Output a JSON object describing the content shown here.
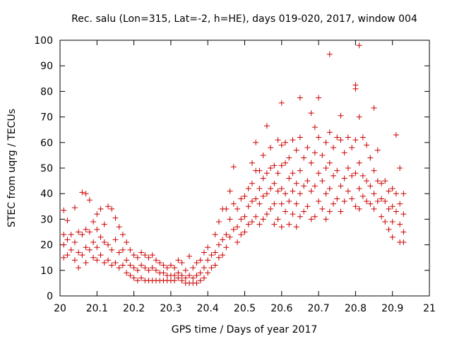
{
  "chart_data": {
    "type": "scatter",
    "title": "Rec. salu (Lon=315, Lat=-2, h=HE), days 019-020, 2017, window 004",
    "xlabel": "GPS time / Days of year 2017",
    "ylabel": "STEC from uqrg / TECUs",
    "xlim": [
      20,
      21
    ],
    "ylim": [
      0,
      100
    ],
    "x_ticks": [
      20,
      20.1,
      20.2,
      20.3,
      20.4,
      20.5,
      20.6,
      20.7,
      20.8,
      20.9,
      21
    ],
    "x_tick_labels": [
      "20",
      "20.1",
      "20.2",
      "20.3",
      "20.4",
      "20.5",
      "20.6",
      "20.7",
      "20.8",
      "20.9",
      "21"
    ],
    "y_ticks": [
      0,
      10,
      20,
      30,
      40,
      50,
      60,
      70,
      80,
      90,
      100
    ],
    "y_tick_labels": [
      "0",
      "10",
      "20",
      "30",
      "40",
      "50",
      "60",
      "70",
      "80",
      "90",
      "100"
    ],
    "grid": false,
    "marker": "+",
    "marker_color": "#cc0000",
    "points": [
      [
        20.01,
        33.5
      ],
      [
        20.01,
        24
      ],
      [
        20.01,
        20
      ],
      [
        20.01,
        15
      ],
      [
        20.02,
        29.5
      ],
      [
        20.02,
        22
      ],
      [
        20.02,
        16
      ],
      [
        20.03,
        24
      ],
      [
        20.03,
        18
      ],
      [
        20.04,
        34.5
      ],
      [
        20.04,
        21
      ],
      [
        20.04,
        14
      ],
      [
        20.05,
        25
      ],
      [
        20.05,
        17
      ],
      [
        20.05,
        11
      ],
      [
        20.06,
        40.5
      ],
      [
        20.06,
        24
      ],
      [
        20.06,
        16
      ],
      [
        20.07,
        40
      ],
      [
        20.07,
        26
      ],
      [
        20.07,
        19
      ],
      [
        20.07,
        13
      ],
      [
        20.08,
        37.5
      ],
      [
        20.08,
        25
      ],
      [
        20.08,
        18
      ],
      [
        20.09,
        29
      ],
      [
        20.09,
        21
      ],
      [
        20.09,
        15
      ],
      [
        20.1,
        32
      ],
      [
        20.1,
        26
      ],
      [
        20.1,
        19
      ],
      [
        20.1,
        14
      ],
      [
        20.11,
        34
      ],
      [
        20.11,
        23
      ],
      [
        20.11,
        16
      ],
      [
        20.12,
        28
      ],
      [
        20.12,
        21
      ],
      [
        20.12,
        13
      ],
      [
        20.13,
        35
      ],
      [
        20.13,
        20
      ],
      [
        20.13,
        14
      ],
      [
        20.14,
        34
      ],
      [
        20.14,
        18
      ],
      [
        20.14,
        12
      ],
      [
        20.15,
        30.5
      ],
      [
        20.15,
        22
      ],
      [
        20.15,
        13
      ],
      [
        20.16,
        27
      ],
      [
        20.16,
        17
      ],
      [
        20.16,
        11
      ],
      [
        20.17,
        24
      ],
      [
        20.17,
        18
      ],
      [
        20.17,
        12
      ],
      [
        20.18,
        21
      ],
      [
        20.18,
        14
      ],
      [
        20.18,
        9
      ],
      [
        20.19,
        18
      ],
      [
        20.19,
        12
      ],
      [
        20.19,
        8
      ],
      [
        20.2,
        16
      ],
      [
        20.2,
        11
      ],
      [
        20.2,
        7
      ],
      [
        20.21,
        15
      ],
      [
        20.21,
        10
      ],
      [
        20.21,
        6
      ],
      [
        20.22,
        17
      ],
      [
        20.22,
        12
      ],
      [
        20.22,
        7
      ],
      [
        20.23,
        16
      ],
      [
        20.23,
        11
      ],
      [
        20.23,
        6
      ],
      [
        20.24,
        15
      ],
      [
        20.24,
        10
      ],
      [
        20.24,
        6
      ],
      [
        20.25,
        16
      ],
      [
        20.25,
        11
      ],
      [
        20.25,
        6
      ],
      [
        20.26,
        14
      ],
      [
        20.26,
        10
      ],
      [
        20.26,
        6
      ],
      [
        20.27,
        13
      ],
      [
        20.27,
        9
      ],
      [
        20.27,
        6
      ],
      [
        20.28,
        12
      ],
      [
        20.28,
        9
      ],
      [
        20.28,
        6
      ],
      [
        20.29,
        11
      ],
      [
        20.29,
        8
      ],
      [
        20.29,
        6
      ],
      [
        20.3,
        12
      ],
      [
        20.3,
        8
      ],
      [
        20.3,
        6
      ],
      [
        20.31,
        11
      ],
      [
        20.31,
        8
      ],
      [
        20.31,
        6
      ],
      [
        20.32,
        14
      ],
      [
        20.32,
        9
      ],
      [
        20.32,
        7
      ],
      [
        20.33,
        13
      ],
      [
        20.33,
        8
      ],
      [
        20.33,
        6
      ],
      [
        20.34,
        10
      ],
      [
        20.34,
        7
      ],
      [
        20.34,
        5
      ],
      [
        20.35,
        15.5
      ],
      [
        20.35,
        8
      ],
      [
        20.35,
        5
      ],
      [
        20.36,
        11
      ],
      [
        20.36,
        7
      ],
      [
        20.36,
        5
      ],
      [
        20.37,
        13
      ],
      [
        20.37,
        8
      ],
      [
        20.37,
        5
      ],
      [
        20.38,
        14
      ],
      [
        20.38,
        9
      ],
      [
        20.38,
        6
      ],
      [
        20.39,
        17
      ],
      [
        20.39,
        11
      ],
      [
        20.39,
        7
      ],
      [
        20.4,
        19
      ],
      [
        20.4,
        14
      ],
      [
        20.4,
        9
      ],
      [
        20.41,
        16
      ],
      [
        20.41,
        11
      ],
      [
        20.42,
        24
      ],
      [
        20.42,
        17
      ],
      [
        20.42,
        12
      ],
      [
        20.43,
        29
      ],
      [
        20.43,
        20
      ],
      [
        20.43,
        15
      ],
      [
        20.44,
        34
      ],
      [
        20.44,
        22
      ],
      [
        20.44,
        16
      ],
      [
        20.45,
        34
      ],
      [
        20.45,
        24
      ],
      [
        20.45,
        19
      ],
      [
        20.46,
        41
      ],
      [
        20.46,
        30
      ],
      [
        20.46,
        23
      ],
      [
        20.47,
        50.5
      ],
      [
        20.47,
        36
      ],
      [
        20.47,
        26
      ],
      [
        20.48,
        34
      ],
      [
        20.48,
        27
      ],
      [
        20.48,
        21
      ],
      [
        20.49,
        38
      ],
      [
        20.49,
        30
      ],
      [
        20.49,
        24
      ],
      [
        20.5,
        39
      ],
      [
        20.5,
        31
      ],
      [
        20.5,
        25
      ],
      [
        20.51,
        42
      ],
      [
        20.51,
        35
      ],
      [
        20.51,
        28
      ],
      [
        20.52,
        52
      ],
      [
        20.52,
        44
      ],
      [
        20.52,
        37
      ],
      [
        20.52,
        29
      ],
      [
        20.53,
        60
      ],
      [
        20.53,
        49
      ],
      [
        20.53,
        38
      ],
      [
        20.53,
        31
      ],
      [
        20.54,
        49
      ],
      [
        20.54,
        42
      ],
      [
        20.54,
        36
      ],
      [
        20.54,
        28
      ],
      [
        20.55,
        55
      ],
      [
        20.55,
        46
      ],
      [
        20.55,
        39
      ],
      [
        20.55,
        30
      ],
      [
        20.56,
        66.5
      ],
      [
        20.56,
        48
      ],
      [
        20.56,
        40
      ],
      [
        20.56,
        32
      ],
      [
        20.57,
        58
      ],
      [
        20.57,
        50
      ],
      [
        20.57,
        42
      ],
      [
        20.57,
        34
      ],
      [
        20.58,
        51
      ],
      [
        20.58,
        44
      ],
      [
        20.58,
        36
      ],
      [
        20.58,
        28
      ],
      [
        20.59,
        61
      ],
      [
        20.59,
        48
      ],
      [
        20.59,
        41
      ],
      [
        20.59,
        30
      ],
      [
        20.6,
        75.5
      ],
      [
        20.6,
        59
      ],
      [
        20.6,
        51
      ],
      [
        20.6,
        42
      ],
      [
        20.6,
        36
      ],
      [
        20.6,
        27
      ],
      [
        20.61,
        60
      ],
      [
        20.61,
        52
      ],
      [
        20.61,
        40
      ],
      [
        20.61,
        33
      ],
      [
        20.62,
        54
      ],
      [
        20.62,
        46
      ],
      [
        20.62,
        37
      ],
      [
        20.62,
        28
      ],
      [
        20.63,
        61
      ],
      [
        20.63,
        48
      ],
      [
        20.63,
        41
      ],
      [
        20.63,
        32
      ],
      [
        20.64,
        57
      ],
      [
        20.64,
        44
      ],
      [
        20.64,
        36
      ],
      [
        20.64,
        27
      ],
      [
        20.65,
        77.5
      ],
      [
        20.65,
        62
      ],
      [
        20.65,
        49
      ],
      [
        20.65,
        40
      ],
      [
        20.65,
        31
      ],
      [
        20.66,
        54
      ],
      [
        20.66,
        43
      ],
      [
        20.66,
        33
      ],
      [
        20.67,
        58
      ],
      [
        20.67,
        45
      ],
      [
        20.67,
        35
      ],
      [
        20.68,
        71.5
      ],
      [
        20.68,
        52
      ],
      [
        20.68,
        41
      ],
      [
        20.68,
        30
      ],
      [
        20.69,
        66
      ],
      [
        20.69,
        56
      ],
      [
        20.69,
        43
      ],
      [
        20.69,
        31
      ],
      [
        20.7,
        77.5
      ],
      [
        20.7,
        62
      ],
      [
        20.7,
        48
      ],
      [
        20.7,
        37
      ],
      [
        20.71,
        55
      ],
      [
        20.71,
        45
      ],
      [
        20.71,
        34
      ],
      [
        20.72,
        60
      ],
      [
        20.72,
        50
      ],
      [
        20.72,
        40
      ],
      [
        20.72,
        30
      ],
      [
        20.73,
        94.5
      ],
      [
        20.73,
        64
      ],
      [
        20.73,
        52
      ],
      [
        20.73,
        42
      ],
      [
        20.73,
        33
      ],
      [
        20.74,
        58
      ],
      [
        20.74,
        47
      ],
      [
        20.74,
        36
      ],
      [
        20.75,
        62
      ],
      [
        20.75,
        49
      ],
      [
        20.75,
        38
      ],
      [
        20.76,
        70.5
      ],
      [
        20.76,
        61
      ],
      [
        20.76,
        43
      ],
      [
        20.76,
        33
      ],
      [
        20.77,
        56
      ],
      [
        20.77,
        46
      ],
      [
        20.77,
        37
      ],
      [
        20.78,
        62
      ],
      [
        20.78,
        50
      ],
      [
        20.78,
        41
      ],
      [
        20.79,
        58
      ],
      [
        20.79,
        47
      ],
      [
        20.79,
        38
      ],
      [
        20.8,
        82.5
      ],
      [
        20.8,
        81
      ],
      [
        20.8,
        61
      ],
      [
        20.8,
        48
      ],
      [
        20.8,
        35
      ],
      [
        20.81,
        98
      ],
      [
        20.81,
        70
      ],
      [
        20.81,
        52
      ],
      [
        20.81,
        42
      ],
      [
        20.81,
        34
      ],
      [
        20.82,
        62
      ],
      [
        20.82,
        47
      ],
      [
        20.82,
        39
      ],
      [
        20.83,
        59
      ],
      [
        20.83,
        45
      ],
      [
        20.83,
        37
      ],
      [
        20.84,
        54
      ],
      [
        20.84,
        43
      ],
      [
        20.84,
        36
      ],
      [
        20.85,
        73.5
      ],
      [
        20.85,
        49
      ],
      [
        20.85,
        40
      ],
      [
        20.85,
        34
      ],
      [
        20.86,
        57
      ],
      [
        20.86,
        45
      ],
      [
        20.86,
        37
      ],
      [
        20.87,
        44
      ],
      [
        20.87,
        38
      ],
      [
        20.87,
        31
      ],
      [
        20.88,
        45
      ],
      [
        20.88,
        37
      ],
      [
        20.88,
        29
      ],
      [
        20.89,
        41
      ],
      [
        20.89,
        34
      ],
      [
        20.89,
        26
      ],
      [
        20.9,
        42
      ],
      [
        20.9,
        35
      ],
      [
        20.9,
        29
      ],
      [
        20.9,
        23
      ],
      [
        20.91,
        63
      ],
      [
        20.91,
        40
      ],
      [
        20.91,
        33
      ],
      [
        20.92,
        50
      ],
      [
        20.92,
        36
      ],
      [
        20.92,
        28
      ],
      [
        20.92,
        21
      ],
      [
        20.93,
        40
      ],
      [
        20.93,
        32
      ],
      [
        20.93,
        25
      ],
      [
        20.93,
        21
      ]
    ]
  }
}
